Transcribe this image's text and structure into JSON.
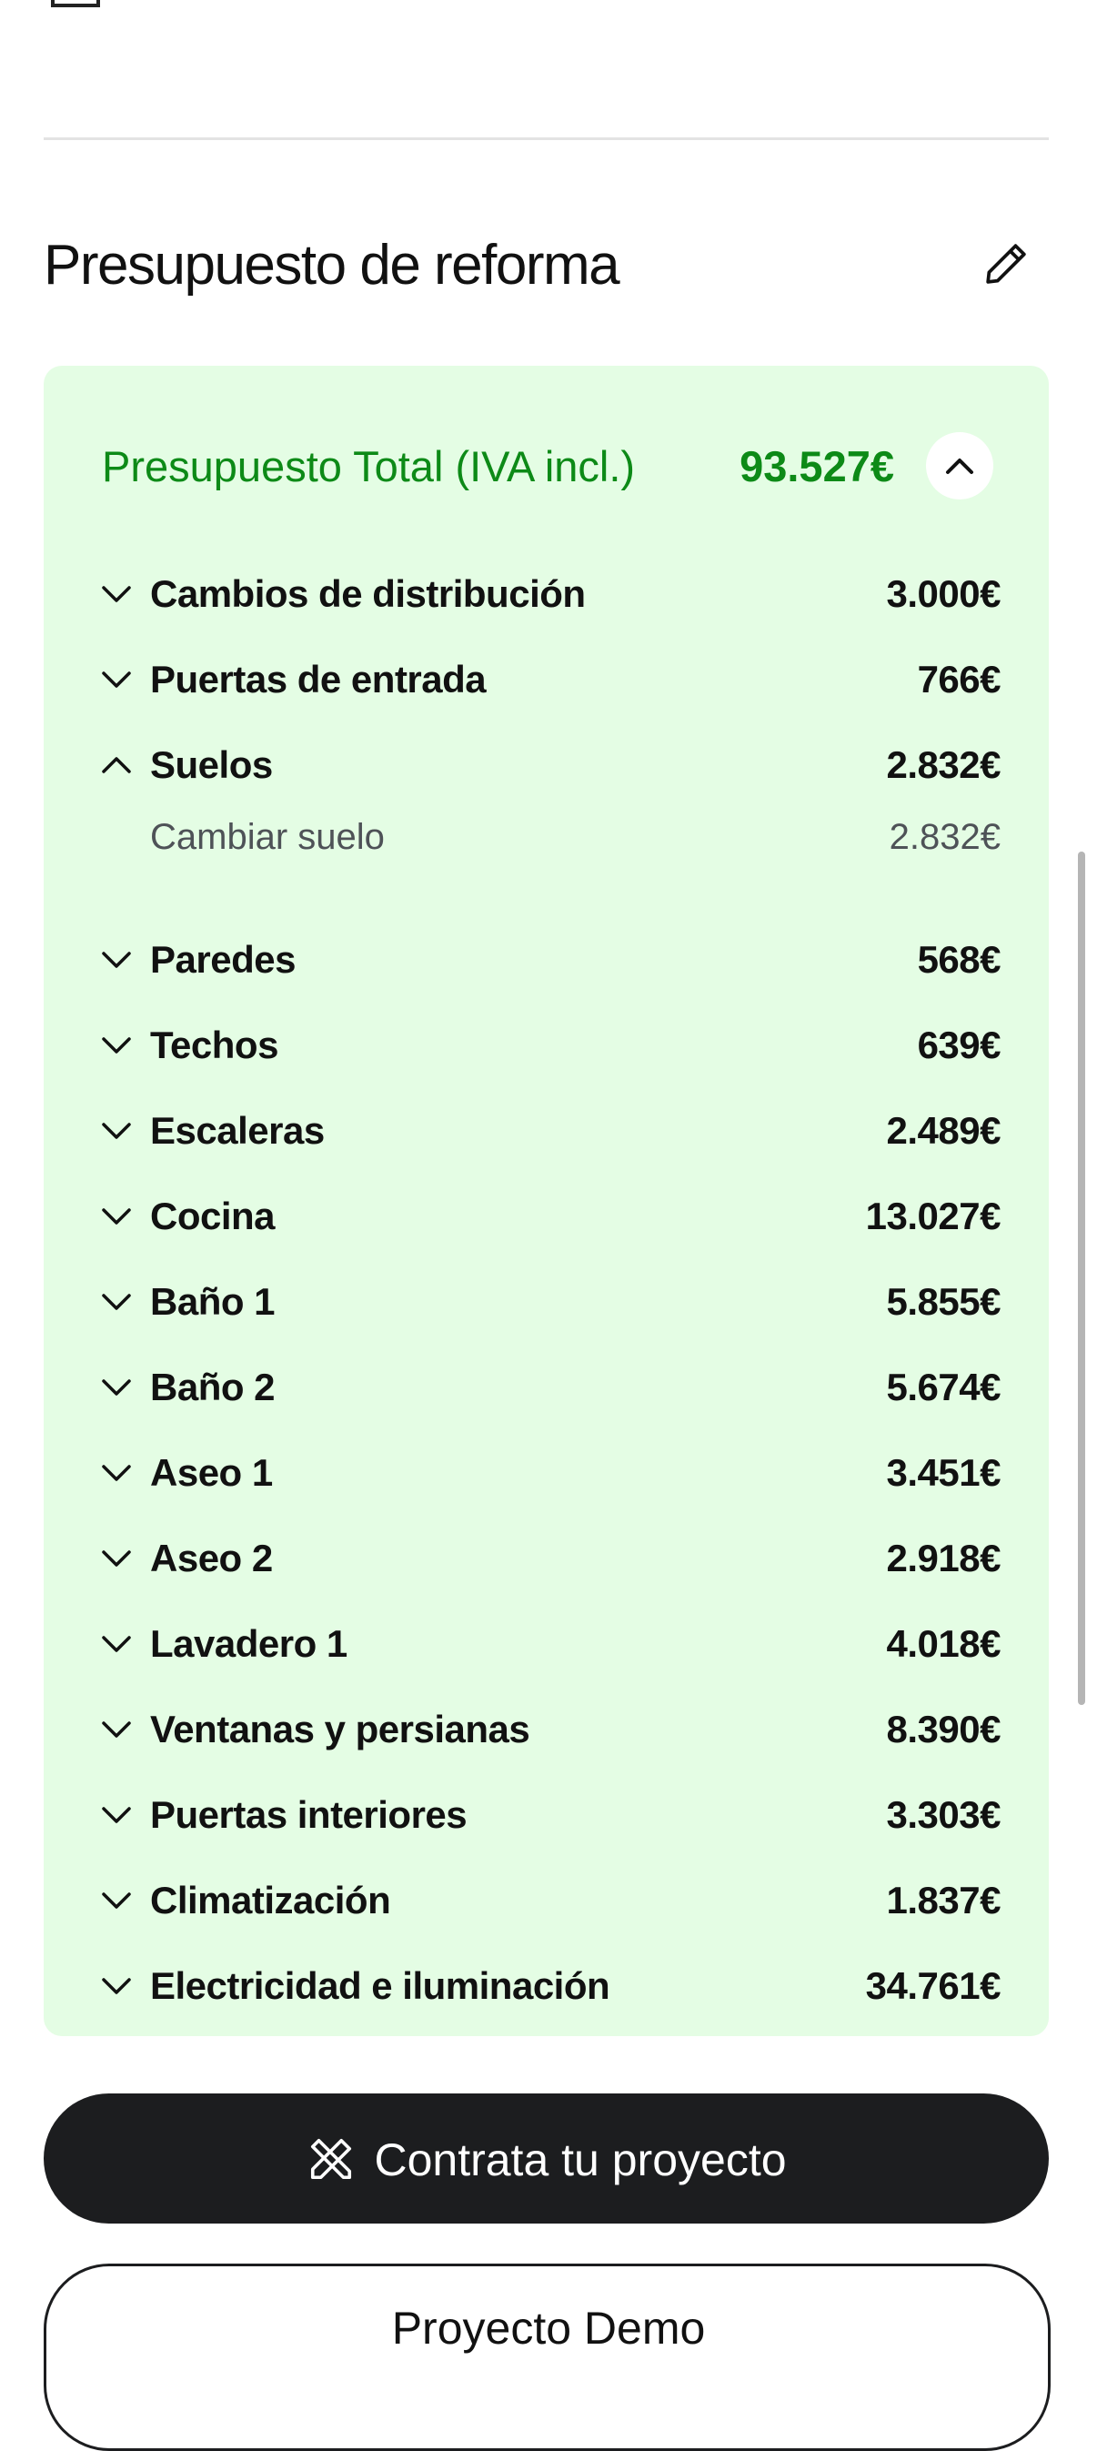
{
  "section": {
    "title": "Presupuesto de reforma"
  },
  "total": {
    "label": "Presupuesto Total (IVA incl.)",
    "value": "93.527€"
  },
  "items": [
    {
      "label": "Cambios de distribución",
      "value": "3.000€",
      "expanded": false
    },
    {
      "label": "Puertas de entrada",
      "value": "766€",
      "expanded": false
    },
    {
      "label": "Suelos",
      "value": "2.832€",
      "expanded": true,
      "sub": [
        {
          "label": "Cambiar suelo",
          "value": "2.832€"
        }
      ]
    },
    {
      "label": "Paredes",
      "value": "568€",
      "expanded": false
    },
    {
      "label": "Techos",
      "value": "639€",
      "expanded": false
    },
    {
      "label": "Escaleras",
      "value": "2.489€",
      "expanded": false
    },
    {
      "label": "Cocina",
      "value": "13.027€",
      "expanded": false
    },
    {
      "label": "Baño 1",
      "value": "5.855€",
      "expanded": false
    },
    {
      "label": "Baño 2",
      "value": "5.674€",
      "expanded": false
    },
    {
      "label": "Aseo 1",
      "value": "3.451€",
      "expanded": false
    },
    {
      "label": "Aseo 2",
      "value": "2.918€",
      "expanded": false
    },
    {
      "label": "Lavadero 1",
      "value": "4.018€",
      "expanded": false
    },
    {
      "label": "Ventanas y persianas",
      "value": "8.390€",
      "expanded": false
    },
    {
      "label": "Puertas interiores",
      "value": "3.303€",
      "expanded": false
    },
    {
      "label": "Climatización",
      "value": "1.837€",
      "expanded": false
    },
    {
      "label": "Electricidad e iluminación",
      "value": "34.761€",
      "expanded": false
    }
  ],
  "buttons": {
    "primary": "Contrata tu proyecto",
    "secondary": "Proyecto Demo"
  }
}
